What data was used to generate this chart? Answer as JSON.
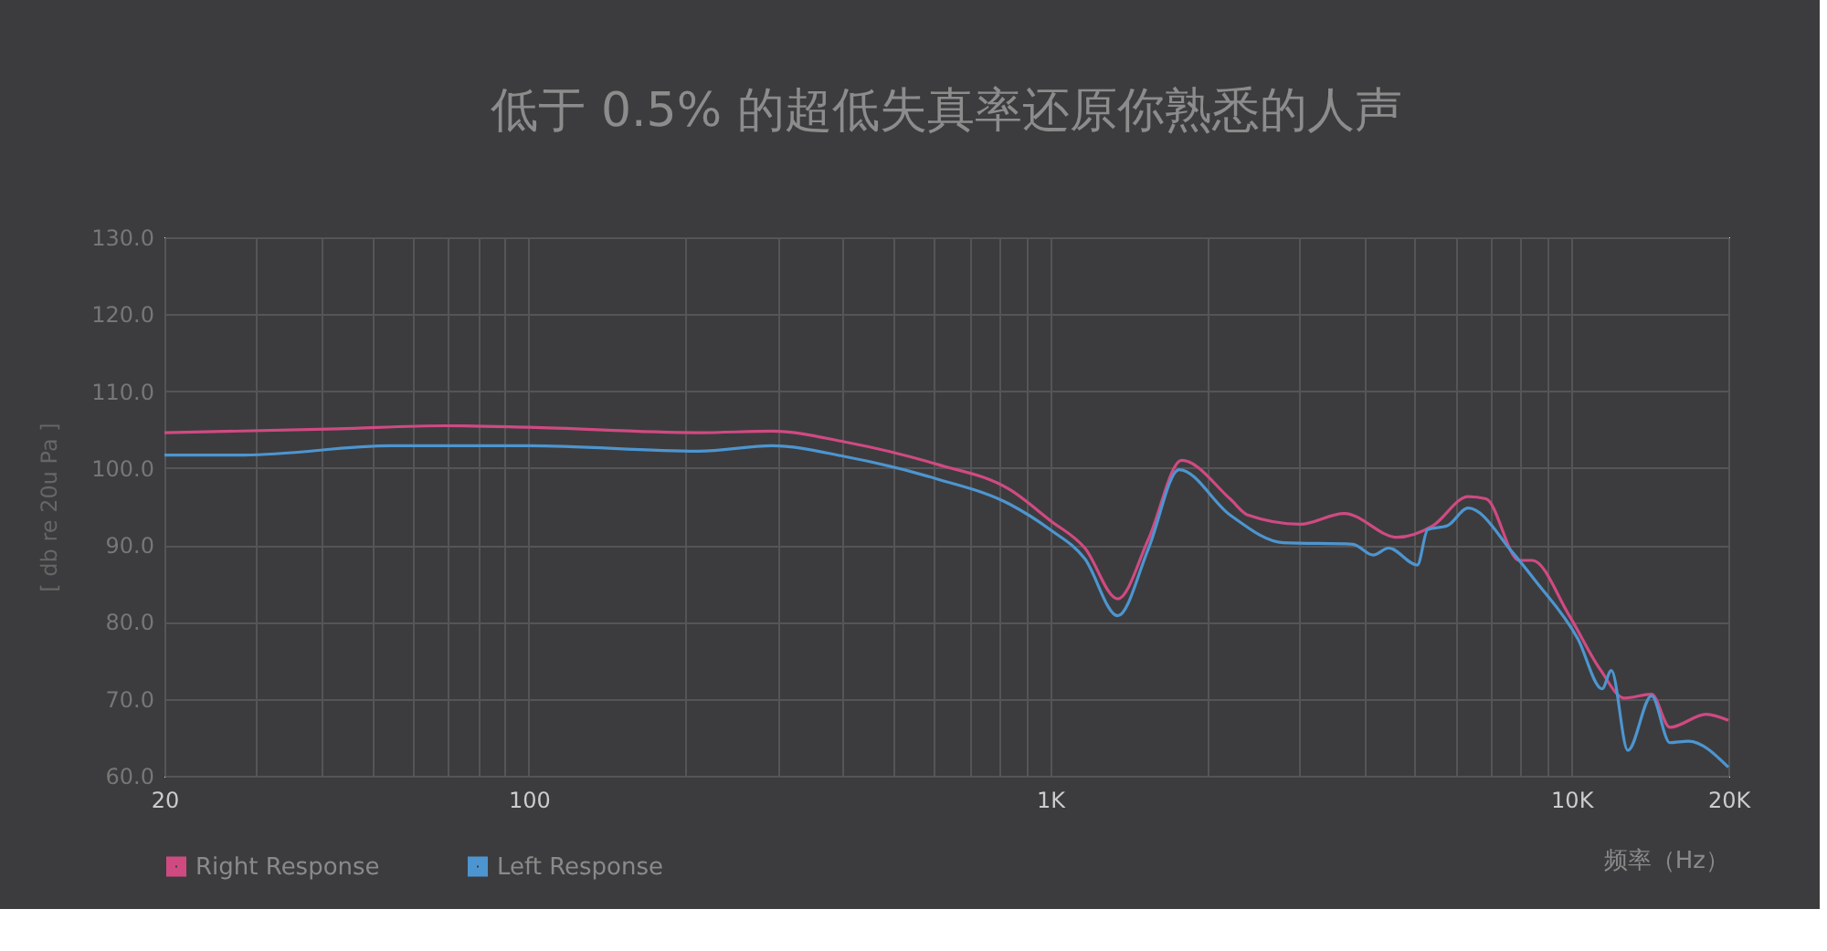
{
  "chart_data": {
    "type": "line",
    "title": "低于 0.5% 的超低失真率还原你熟悉的人声",
    "xlabel": "频率（Hz）",
    "ylabel": "[ db re 20u Pa ]",
    "log": "x",
    "grid": true,
    "legend": "bottom left",
    "marker": "none",
    "line_style": "solid",
    "xlim": [
      20,
      20000
    ],
    "ylim": [
      60,
      130
    ],
    "xticks": [
      20,
      {
        "value": 30,
        "label": null
      },
      {
        "value": 40,
        "label": null
      },
      {
        "value": 50,
        "label": null
      },
      {
        "value": 60,
        "label": null
      },
      {
        "value": 70,
        "label": null
      },
      {
        "value": 80,
        "label": null
      },
      {
        "value": 90,
        "label": null
      },
      100,
      {
        "value": 200,
        "label": null
      },
      {
        "value": 300,
        "label": null
      },
      {
        "value": 400,
        "label": null
      },
      {
        "value": 500,
        "label": null
      },
      {
        "value": 600,
        "label": null
      },
      {
        "value": 700,
        "label": null
      },
      {
        "value": 800,
        "label": null
      },
      {
        "value": 900,
        "label": null
      },
      {
        "value": 1000,
        "label": "1K"
      },
      {
        "value": 2000,
        "label": null
      },
      {
        "value": 3000,
        "label": null
      },
      {
        "value": 4000,
        "label": null
      },
      {
        "value": 5000,
        "label": null
      },
      {
        "value": 6000,
        "label": null
      },
      {
        "value": 7000,
        "label": null
      },
      {
        "value": 8000,
        "label": null
      },
      {
        "value": 9000,
        "label": null
      },
      {
        "value": 10000,
        "label": "10K"
      },
      {
        "value": 20000,
        "label": "20K"
      }
    ],
    "yticks": [
      {
        "value": 60,
        "label": "60.0"
      },
      {
        "value": 70,
        "label": "70.0"
      },
      {
        "value": 80,
        "label": "80.0"
      },
      {
        "value": 90,
        "label": "90.0"
      },
      {
        "value": 100,
        "label": "100.0"
      },
      {
        "value": 110,
        "label": "110.0"
      },
      {
        "value": 120,
        "label": "120.0"
      },
      {
        "value": 130,
        "label": "130.0"
      }
    ],
    "series": [
      {
        "name": "Right Response",
        "color": "#d04a82",
        "x": [
          20,
          43,
          69,
          100,
          212,
          293,
          404,
          606,
          837,
          1000,
          1166,
          1348,
          1545,
          1788,
          2214,
          2394,
          3017,
          3666,
          4632,
          5420,
          6338,
          6858,
          7941,
          8413,
          9890,
          11360,
          12630,
          14250,
          15450,
          18140,
          20000
        ],
        "values": [
          104.6,
          105.1,
          105.5,
          105.3,
          104.6,
          104.8,
          103.4,
          100.5,
          97.2,
          93.2,
          89.6,
          83.0,
          90.8,
          101.0,
          96.0,
          93.9,
          92.7,
          94.1,
          91.0,
          92.5,
          96.3,
          96.0,
          88.0,
          88.0,
          80.9,
          73.8,
          70.1,
          70.6,
          66.3,
          68.0,
          67.2
        ]
      },
      {
        "name": "Left Response",
        "color": "#4d95d0",
        "x": [
          20,
          28.5,
          54.5,
          100,
          212,
          293,
          404,
          606,
          837,
          1000,
          1166,
          1348,
          1545,
          1768,
          2214,
          2800,
          3808,
          4166,
          4459,
          5064,
          5300,
          5780,
          6338,
          7739,
          8540,
          10290,
          11450,
          11930,
          12830,
          14250,
          15450,
          16760,
          20000
        ],
        "values": [
          101.7,
          101.7,
          102.9,
          102.9,
          102.2,
          102.9,
          101.5,
          98.6,
          95.3,
          92.0,
          88.2,
          80.8,
          89.6,
          99.8,
          93.9,
          90.3,
          90.1,
          88.7,
          89.6,
          87.4,
          92.0,
          92.5,
          94.8,
          88.9,
          85.3,
          77.8,
          71.3,
          73.7,
          63.3,
          70.4,
          64.3,
          64.5,
          61.1
        ]
      }
    ]
  }
}
